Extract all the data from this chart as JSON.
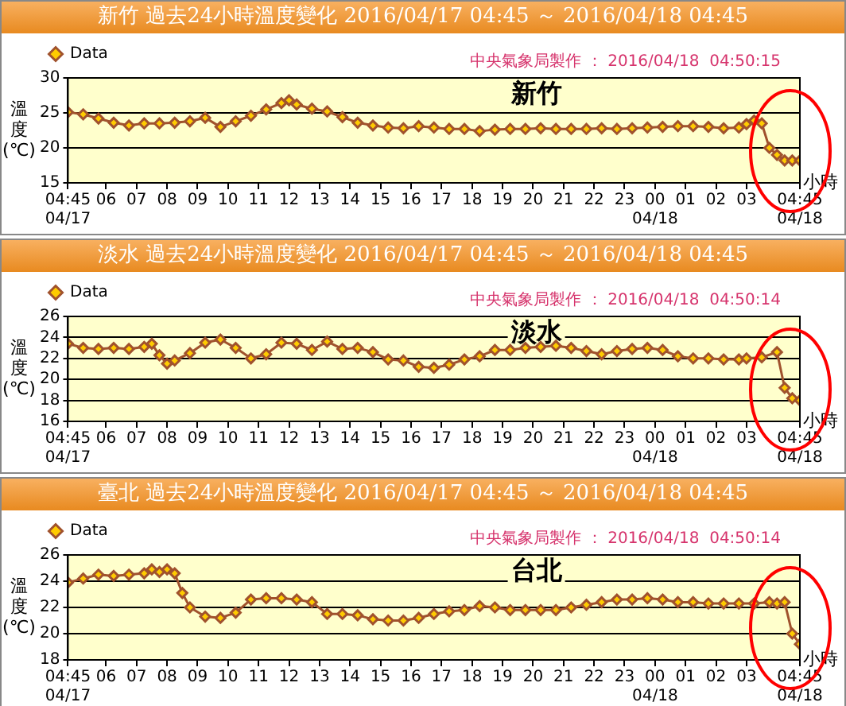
{
  "chart_data": [
    {
      "type": "line",
      "title": "新竹  過去24小時溫度變化  2016/04/17  04:45  ～  2016/04/18  04:45",
      "ylabel": "溫度(℃)",
      "xlabel": "小時",
      "annotations": [
        "中央氣象局製作 ： 2016/04/18  04:50:15",
        "新竹"
      ],
      "legend": "top left",
      "grid": "y",
      "marker": "diamond",
      "line_style": "solid",
      "xlim": [
        "2016-04-17T04:45",
        "2016-04-18T04:45"
      ],
      "ylim": [
        15,
        30
      ],
      "yticks": [
        15,
        20,
        25,
        30
      ],
      "xticks": [
        {
          "value": "2016-04-17T04:45",
          "label": "04:45\n04/17"
        },
        {
          "value": "2016-04-17T06:00",
          "label": "06"
        },
        {
          "value": "2016-04-17T07:00",
          "label": "07"
        },
        {
          "value": "2016-04-17T08:00",
          "label": "08"
        },
        {
          "value": "2016-04-17T09:00",
          "label": "09"
        },
        {
          "value": "2016-04-17T10:00",
          "label": "10"
        },
        {
          "value": "2016-04-17T11:00",
          "label": "11"
        },
        {
          "value": "2016-04-17T12:00",
          "label": "12"
        },
        {
          "value": "2016-04-17T13:00",
          "label": "13"
        },
        {
          "value": "2016-04-17T14:00",
          "label": "14"
        },
        {
          "value": "2016-04-17T15:00",
          "label": "15"
        },
        {
          "value": "2016-04-17T16:00",
          "label": "16"
        },
        {
          "value": "2016-04-17T17:00",
          "label": "17"
        },
        {
          "value": "2016-04-17T18:00",
          "label": "18"
        },
        {
          "value": "2016-04-17T19:00",
          "label": "19"
        },
        {
          "value": "2016-04-17T20:00",
          "label": "20"
        },
        {
          "value": "2016-04-17T21:00",
          "label": "21"
        },
        {
          "value": "2016-04-17T22:00",
          "label": "22"
        },
        {
          "value": "2016-04-17T23:00",
          "label": "23"
        },
        {
          "value": "2016-04-18T00:00",
          "label": "00\n04/18"
        },
        {
          "value": "2016-04-18T01:00",
          "label": "01"
        },
        {
          "value": "2016-04-18T02:00",
          "label": "02"
        },
        {
          "value": "2016-04-18T03:00",
          "label": "03"
        },
        {
          "value": "2016-04-18T04:45",
          "label": "04:45\n04/18"
        }
      ],
      "series": [
        {
          "name": "Data",
          "color": "#a0522d",
          "x": [
            "2016-04-17T04:45",
            "2016-04-17T05:15",
            "2016-04-17T05:45",
            "2016-04-17T06:15",
            "2016-04-17T06:45",
            "2016-04-17T07:15",
            "2016-04-17T07:45",
            "2016-04-17T08:15",
            "2016-04-17T08:45",
            "2016-04-17T09:15",
            "2016-04-17T09:45",
            "2016-04-17T10:15",
            "2016-04-17T10:45",
            "2016-04-17T11:15",
            "2016-04-17T11:45",
            "2016-04-17T12:00",
            "2016-04-17T12:15",
            "2016-04-17T12:45",
            "2016-04-17T13:15",
            "2016-04-17T13:45",
            "2016-04-17T14:15",
            "2016-04-17T14:45",
            "2016-04-17T15:15",
            "2016-04-17T15:45",
            "2016-04-17T16:15",
            "2016-04-17T16:45",
            "2016-04-17T17:15",
            "2016-04-17T17:45",
            "2016-04-17T18:15",
            "2016-04-17T18:45",
            "2016-04-17T19:15",
            "2016-04-17T19:45",
            "2016-04-17T20:15",
            "2016-04-17T20:45",
            "2016-04-17T21:15",
            "2016-04-17T21:45",
            "2016-04-17T22:15",
            "2016-04-17T22:45",
            "2016-04-17T23:15",
            "2016-04-17T23:45",
            "2016-04-18T00:15",
            "2016-04-18T00:45",
            "2016-04-18T01:15",
            "2016-04-18T01:45",
            "2016-04-18T02:15",
            "2016-04-18T02:45",
            "2016-04-18T03:00",
            "2016-04-18T03:15",
            "2016-04-18T03:30",
            "2016-04-18T03:45",
            "2016-04-18T04:00",
            "2016-04-18T04:15",
            "2016-04-18T04:30",
            "2016-04-18T04:45"
          ],
          "values": [
            25.1,
            24.8,
            24.2,
            23.6,
            23.2,
            23.5,
            23.5,
            23.6,
            23.8,
            24.3,
            23.0,
            23.8,
            24.6,
            25.5,
            26.4,
            26.8,
            26.2,
            25.6,
            25.2,
            24.4,
            23.6,
            23.2,
            22.9,
            22.8,
            23.1,
            22.9,
            22.7,
            22.7,
            22.4,
            22.6,
            22.7,
            22.7,
            22.8,
            22.7,
            22.7,
            22.7,
            22.8,
            22.7,
            22.8,
            22.9,
            23.0,
            23.1,
            23.1,
            23.0,
            22.8,
            22.9,
            23.4,
            23.9,
            23.5,
            20.0,
            19.0,
            18.2,
            18.2,
            18.2
          ]
        }
      ]
    },
    {
      "type": "line",
      "title": "淡水  過去24小時溫度變化  2016/04/17  04:45  ～  2016/04/18  04:45",
      "ylabel": "溫度(℃)",
      "xlabel": "小時",
      "annotations": [
        "中央氣象局製作 ： 2016/04/18  04:50:14",
        "淡水"
      ],
      "legend": "top left",
      "grid": "y",
      "marker": "diamond",
      "line_style": "solid",
      "xlim": [
        "2016-04-17T04:45",
        "2016-04-18T04:45"
      ],
      "ylim": [
        16,
        26
      ],
      "yticks": [
        16,
        18,
        20,
        22,
        24,
        26
      ],
      "xticks": [
        {
          "value": "2016-04-17T04:45",
          "label": "04:45\n04/17"
        },
        {
          "value": "2016-04-17T06:00",
          "label": "06"
        },
        {
          "value": "2016-04-17T07:00",
          "label": "07"
        },
        {
          "value": "2016-04-17T08:00",
          "label": "08"
        },
        {
          "value": "2016-04-17T09:00",
          "label": "09"
        },
        {
          "value": "2016-04-17T10:00",
          "label": "10"
        },
        {
          "value": "2016-04-17T11:00",
          "label": "11"
        },
        {
          "value": "2016-04-17T12:00",
          "label": "12"
        },
        {
          "value": "2016-04-17T13:00",
          "label": "13"
        },
        {
          "value": "2016-04-17T14:00",
          "label": "14"
        },
        {
          "value": "2016-04-17T15:00",
          "label": "15"
        },
        {
          "value": "2016-04-17T16:00",
          "label": "16"
        },
        {
          "value": "2016-04-17T17:00",
          "label": "17"
        },
        {
          "value": "2016-04-17T18:00",
          "label": "18"
        },
        {
          "value": "2016-04-17T19:00",
          "label": "19"
        },
        {
          "value": "2016-04-17T20:00",
          "label": "20"
        },
        {
          "value": "2016-04-17T21:00",
          "label": "21"
        },
        {
          "value": "2016-04-17T22:00",
          "label": "22"
        },
        {
          "value": "2016-04-17T23:00",
          "label": "23"
        },
        {
          "value": "2016-04-18T00:00",
          "label": "00\n04/18"
        },
        {
          "value": "2016-04-18T01:00",
          "label": "01"
        },
        {
          "value": "2016-04-18T02:00",
          "label": "02"
        },
        {
          "value": "2016-04-18T03:00",
          "label": "03"
        },
        {
          "value": "2016-04-18T04:45",
          "label": "04:45\n04/18"
        }
      ],
      "series": [
        {
          "name": "Data",
          "color": "#a0522d",
          "x": [
            "2016-04-17T04:45",
            "2016-04-17T05:15",
            "2016-04-17T05:45",
            "2016-04-17T06:15",
            "2016-04-17T06:45",
            "2016-04-17T07:15",
            "2016-04-17T07:30",
            "2016-04-17T07:45",
            "2016-04-17T08:00",
            "2016-04-17T08:15",
            "2016-04-17T08:45",
            "2016-04-17T09:15",
            "2016-04-17T09:45",
            "2016-04-17T10:15",
            "2016-04-17T10:45",
            "2016-04-17T11:15",
            "2016-04-17T11:45",
            "2016-04-17T12:15",
            "2016-04-17T12:45",
            "2016-04-17T13:15",
            "2016-04-17T13:45",
            "2016-04-17T14:15",
            "2016-04-17T14:45",
            "2016-04-17T15:15",
            "2016-04-17T15:45",
            "2016-04-17T16:15",
            "2016-04-17T16:45",
            "2016-04-17T17:15",
            "2016-04-17T17:45",
            "2016-04-17T18:15",
            "2016-04-17T18:45",
            "2016-04-17T19:15",
            "2016-04-17T19:45",
            "2016-04-17T20:15",
            "2016-04-17T20:45",
            "2016-04-17T21:15",
            "2016-04-17T21:45",
            "2016-04-17T22:15",
            "2016-04-17T22:45",
            "2016-04-17T23:15",
            "2016-04-17T23:45",
            "2016-04-18T00:15",
            "2016-04-18T00:45",
            "2016-04-18T01:15",
            "2016-04-18T01:45",
            "2016-04-18T02:15",
            "2016-04-18T02:45",
            "2016-04-18T03:00",
            "2016-04-18T03:30",
            "2016-04-18T04:00",
            "2016-04-18T04:15",
            "2016-04-18T04:30",
            "2016-04-18T04:45"
          ],
          "values": [
            23.4,
            23.0,
            22.9,
            23.0,
            22.9,
            23.1,
            23.4,
            22.3,
            21.5,
            21.8,
            22.5,
            23.5,
            23.8,
            23.0,
            22.0,
            22.4,
            23.5,
            23.4,
            22.8,
            23.6,
            22.9,
            23.0,
            22.6,
            21.9,
            21.8,
            21.2,
            21.1,
            21.4,
            21.9,
            22.2,
            22.8,
            22.8,
            23.0,
            23.1,
            23.2,
            23.0,
            22.7,
            22.4,
            22.7,
            22.9,
            23.0,
            22.8,
            22.2,
            22.0,
            22.0,
            21.9,
            21.9,
            22.0,
            22.1,
            22.6,
            19.2,
            18.2,
            18.0
          ]
        }
      ]
    },
    {
      "type": "line",
      "title": "臺北  過去24小時溫度變化  2016/04/17  04:45  ～  2016/04/18  04:45",
      "ylabel": "溫度(℃)",
      "xlabel": "小時",
      "annotations": [
        "中央氣象局製作 ： 2016/04/18  04:50:14",
        "台北"
      ],
      "legend": "top left",
      "grid": "y",
      "marker": "diamond",
      "line_style": "solid",
      "xlim": [
        "2016-04-17T04:45",
        "2016-04-18T04:45"
      ],
      "ylim": [
        18,
        26
      ],
      "yticks": [
        18,
        20,
        22,
        24,
        26
      ],
      "xticks": [
        {
          "value": "2016-04-17T04:45",
          "label": "04:45\n04/17"
        },
        {
          "value": "2016-04-17T06:00",
          "label": "06"
        },
        {
          "value": "2016-04-17T07:00",
          "label": "07"
        },
        {
          "value": "2016-04-17T08:00",
          "label": "08"
        },
        {
          "value": "2016-04-17T09:00",
          "label": "09"
        },
        {
          "value": "2016-04-17T10:00",
          "label": "10"
        },
        {
          "value": "2016-04-17T11:00",
          "label": "11"
        },
        {
          "value": "2016-04-17T12:00",
          "label": "12"
        },
        {
          "value": "2016-04-17T13:00",
          "label": "13"
        },
        {
          "value": "2016-04-17T14:00",
          "label": "14"
        },
        {
          "value": "2016-04-17T15:00",
          "label": "15"
        },
        {
          "value": "2016-04-17T16:00",
          "label": "16"
        },
        {
          "value": "2016-04-17T17:00",
          "label": "17"
        },
        {
          "value": "2016-04-17T18:00",
          "label": "18"
        },
        {
          "value": "2016-04-17T19:00",
          "label": "19"
        },
        {
          "value": "2016-04-17T20:00",
          "label": "20"
        },
        {
          "value": "2016-04-17T21:00",
          "label": "21"
        },
        {
          "value": "2016-04-17T22:00",
          "label": "22"
        },
        {
          "value": "2016-04-17T23:00",
          "label": "23"
        },
        {
          "value": "2016-04-18T00:00",
          "label": "00\n04/18"
        },
        {
          "value": "2016-04-18T01:00",
          "label": "01"
        },
        {
          "value": "2016-04-18T02:00",
          "label": "02"
        },
        {
          "value": "2016-04-18T03:00",
          "label": "03"
        },
        {
          "value": "2016-04-18T04:45",
          "label": "04:45\n04/18"
        }
      ],
      "series": [
        {
          "name": "Data",
          "color": "#a0522d",
          "x": [
            "2016-04-17T04:45",
            "2016-04-17T05:15",
            "2016-04-17T05:45",
            "2016-04-17T06:15",
            "2016-04-17T06:45",
            "2016-04-17T07:15",
            "2016-04-17T07:30",
            "2016-04-17T07:45",
            "2016-04-17T08:00",
            "2016-04-17T08:15",
            "2016-04-17T08:30",
            "2016-04-17T08:45",
            "2016-04-17T09:15",
            "2016-04-17T09:45",
            "2016-04-17T10:15",
            "2016-04-17T10:45",
            "2016-04-17T11:15",
            "2016-04-17T11:45",
            "2016-04-17T12:15",
            "2016-04-17T12:45",
            "2016-04-17T13:15",
            "2016-04-17T13:45",
            "2016-04-17T14:15",
            "2016-04-17T14:45",
            "2016-04-17T15:15",
            "2016-04-17T15:45",
            "2016-04-17T16:15",
            "2016-04-17T16:45",
            "2016-04-17T17:15",
            "2016-04-17T17:45",
            "2016-04-17T18:15",
            "2016-04-17T18:45",
            "2016-04-17T19:15",
            "2016-04-17T19:45",
            "2016-04-17T20:15",
            "2016-04-17T20:45",
            "2016-04-17T21:15",
            "2016-04-17T21:45",
            "2016-04-17T22:15",
            "2016-04-17T22:45",
            "2016-04-17T23:15",
            "2016-04-17T23:45",
            "2016-04-18T00:15",
            "2016-04-18T00:45",
            "2016-04-18T01:15",
            "2016-04-18T01:45",
            "2016-04-18T02:15",
            "2016-04-18T02:45",
            "2016-04-18T03:15",
            "2016-04-18T03:45",
            "2016-04-18T04:00",
            "2016-04-18T04:15",
            "2016-04-18T04:30",
            "2016-04-18T04:45"
          ],
          "values": [
            23.9,
            24.2,
            24.5,
            24.4,
            24.5,
            24.6,
            24.9,
            24.7,
            24.9,
            24.6,
            23.1,
            22.0,
            21.3,
            21.2,
            21.6,
            22.6,
            22.7,
            22.7,
            22.6,
            22.4,
            21.5,
            21.5,
            21.4,
            21.1,
            21.0,
            21.0,
            21.2,
            21.5,
            21.7,
            21.8,
            22.1,
            22.0,
            21.8,
            21.8,
            21.8,
            21.8,
            22.0,
            22.2,
            22.4,
            22.6,
            22.6,
            22.7,
            22.6,
            22.4,
            22.4,
            22.3,
            22.3,
            22.3,
            22.3,
            22.4,
            22.3,
            22.4,
            20.0,
            19.2
          ]
        }
      ]
    }
  ]
}
